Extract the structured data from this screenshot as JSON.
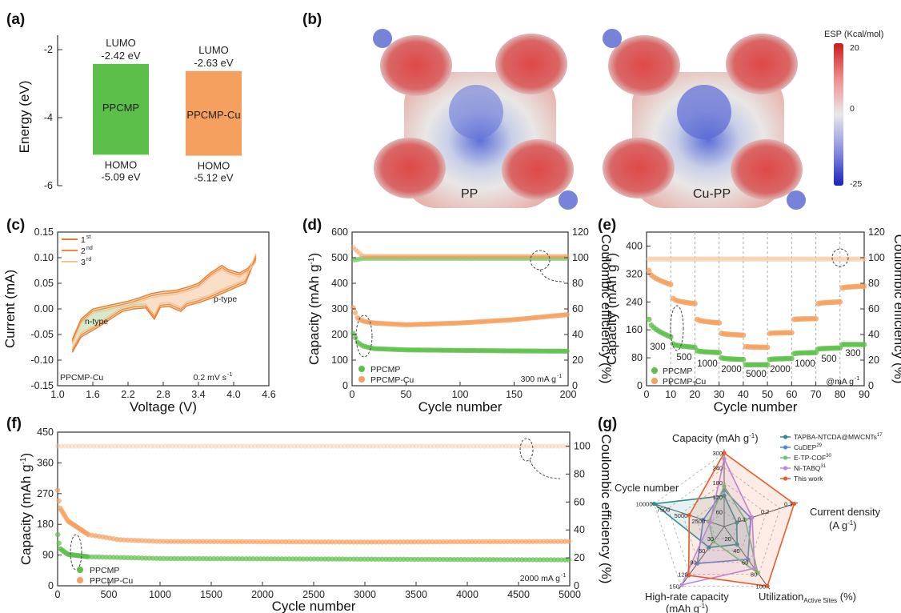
{
  "panels": {
    "a": "(a)",
    "b": "(b)",
    "c": "(c)",
    "d": "(d)",
    "e": "(e)",
    "f": "(f)",
    "g": "(g)"
  },
  "colors": {
    "green": "#5cbf4a",
    "orange": "#f5a05e",
    "orange_dark": "#ef7a2a",
    "teal": "#2e8b8f",
    "blue": "#5b86c9",
    "lgreen": "#6ec07a",
    "purple": "#b98be0",
    "red": "#ec5a2a"
  },
  "chart_data": [
    {
      "panel": "a",
      "type": "bar",
      "ylabel": "Energy (eV)",
      "yticks": [
        "-2",
        "-4",
        "-6"
      ],
      "ylim": [
        -6,
        -1.6
      ],
      "bars": [
        {
          "name": "PPCMP",
          "lumo": -2.42,
          "homo": -5.09,
          "lumo_label": "LUMO",
          "lumo_value": "-2.42 eV",
          "homo_label": "HOMO",
          "homo_value": "-5.09 eV",
          "color": "#5cbf4a"
        },
        {
          "name": "PPCMP-Cu",
          "lumo": -2.63,
          "homo": -5.12,
          "lumo_label": "LUMO",
          "lumo_value": "-2.63 eV",
          "homo_label": "HOMO",
          "homo_value": "-5.12 eV",
          "color": "#f5a05e"
        }
      ]
    },
    {
      "panel": "b",
      "type": "heatmap",
      "images": [
        "PP",
        "Cu-PP"
      ],
      "colorbar_title": "ESP (Kcal/mol)",
      "colorbar_ticks": [
        "20",
        "0",
        "-25"
      ],
      "colorbar_range": [
        -25,
        20
      ]
    },
    {
      "panel": "c",
      "type": "line",
      "xlabel": "Voltage (V)",
      "ylabel": "Current (mA)",
      "xlim": [
        1.0,
        4.6
      ],
      "ylim": [
        -0.15,
        0.15
      ],
      "xticks": [
        "1.0",
        "1.6",
        "2.2",
        "2.8",
        "3.4",
        "4.0",
        "4.6"
      ],
      "yticks": [
        "0.15",
        "0.10",
        "0.05",
        "0.00",
        "-0.05",
        "-0.10",
        "-0.15"
      ],
      "series": [
        {
          "name": "1",
          "sup": "st",
          "color": "#ef7a2a"
        },
        {
          "name": "2",
          "sup": "nd",
          "color": "#f08a40"
        },
        {
          "name": "3",
          "sup": "rd",
          "color": "#f7c393"
        }
      ],
      "upper": [
        [
          1.25,
          -0.06
        ],
        [
          1.4,
          -0.02
        ],
        [
          1.6,
          0.0
        ],
        [
          1.8,
          0.005
        ],
        [
          2.0,
          0.01
        ],
        [
          2.2,
          0.015
        ],
        [
          2.4,
          0.022
        ],
        [
          2.6,
          0.03
        ],
        [
          2.8,
          0.034
        ],
        [
          3.0,
          0.036
        ],
        [
          3.2,
          0.042
        ],
        [
          3.4,
          0.05
        ],
        [
          3.6,
          0.07
        ],
        [
          3.8,
          0.085
        ],
        [
          3.9,
          0.077
        ],
        [
          4.1,
          0.07
        ],
        [
          4.25,
          0.08
        ],
        [
          4.38,
          0.1
        ]
      ],
      "lower": [
        [
          1.25,
          -0.085
        ],
        [
          1.4,
          -0.055
        ],
        [
          1.55,
          -0.045
        ],
        [
          1.7,
          -0.035
        ],
        [
          1.9,
          -0.02
        ],
        [
          2.1,
          -0.005
        ],
        [
          2.3,
          0.0
        ],
        [
          2.5,
          0.002
        ],
        [
          2.65,
          -0.02
        ],
        [
          2.75,
          0.003
        ],
        [
          2.9,
          0.005
        ],
        [
          3.1,
          -0.005
        ],
        [
          3.2,
          0.006
        ],
        [
          3.4,
          0.012
        ],
        [
          3.6,
          0.02
        ],
        [
          3.8,
          0.03
        ],
        [
          4.0,
          0.04
        ],
        [
          4.2,
          0.05
        ],
        [
          4.38,
          0.1
        ]
      ],
      "annotations": [
        "n-type",
        "p-type"
      ],
      "corner_left": "PPCMP-Cu",
      "corner_right_text": "0.2 mV s",
      "corner_right_sup": "-1"
    },
    {
      "panel": "d",
      "type": "scatter",
      "xlabel": "Cycle number",
      "ylabel": "Capacity (mAh g",
      "ylabel_sup": "-1",
      "ylabel_right": "Coulombic efficiency (%)",
      "xlim": [
        0,
        200
      ],
      "ylim": [
        0,
        600
      ],
      "ylim_right": [
        0,
        120
      ],
      "xticks": [
        "0",
        "50",
        "100",
        "150",
        "200"
      ],
      "yticks": [
        "0",
        "100",
        "200",
        "300",
        "400",
        "500",
        "600"
      ],
      "yticks_right": [
        "0",
        "20",
        "40",
        "60",
        "80",
        "100",
        "120"
      ],
      "series": [
        {
          "name": "PPCMP",
          "capacity": [
            [
              1,
              205
            ],
            [
              5,
              170
            ],
            [
              10,
              155
            ],
            [
              20,
              145
            ],
            [
              50,
              140
            ],
            [
              100,
              138
            ],
            [
              150,
              136
            ],
            [
              200,
              135
            ]
          ],
          "ce": [
            [
              1,
              98
            ],
            [
              10,
              99.5
            ],
            [
              100,
              99.5
            ],
            [
              200,
              99.5
            ]
          ],
          "color": "#5cbf4a"
        },
        {
          "name": "PPCMP-Cu",
          "capacity": [
            [
              1,
              305
            ],
            [
              5,
              265
            ],
            [
              10,
              252
            ],
            [
              20,
              245
            ],
            [
              50,
              238
            ],
            [
              100,
              245
            ],
            [
              150,
              258
            ],
            [
              200,
              278
            ]
          ],
          "ce": [
            [
              1,
              108
            ],
            [
              10,
              101
            ],
            [
              100,
              101
            ],
            [
              200,
              101
            ]
          ],
          "color": "#f5a05e"
        }
      ],
      "corner_right_text": "300 mA g",
      "corner_right_sup": "-1"
    },
    {
      "panel": "e",
      "type": "scatter",
      "xlabel": "Cycle number",
      "ylabel": "Capacity (mAh g",
      "ylabel_sup": "-1",
      "ylabel_right": "Coulombic efficiency (%)",
      "xlim": [
        0,
        90
      ],
      "ylim": [
        0,
        440
      ],
      "ylim_right": [
        0,
        120
      ],
      "xticks": [
        "0",
        "10",
        "20",
        "30",
        "40",
        "50",
        "60",
        "70",
        "80",
        "90"
      ],
      "yticks": [
        "0",
        "80",
        "160",
        "240",
        "320",
        "400"
      ],
      "yticks_right": [
        "0",
        "20",
        "40",
        "60",
        "80",
        "100",
        "120"
      ],
      "rate_labels": [
        "300",
        "500",
        "1000",
        "2000",
        "5000",
        "2000",
        "1000",
        "500",
        "300"
      ],
      "segments": [
        {
          "x": [
            1,
            10
          ],
          "ppcmp": [
            190,
            140
          ],
          "ppcmp_cu": [
            330,
            290
          ]
        },
        {
          "x": [
            11,
            20
          ],
          "ppcmp": [
            120,
            110
          ],
          "ppcmp_cu": [
            250,
            235
          ]
        },
        {
          "x": [
            21,
            30
          ],
          "ppcmp": [
            100,
            95
          ],
          "ppcmp_cu": [
            190,
            180
          ]
        },
        {
          "x": [
            31,
            40
          ],
          "ppcmp": [
            80,
            75
          ],
          "ppcmp_cu": [
            150,
            145
          ]
        },
        {
          "x": [
            41,
            50
          ],
          "ppcmp": [
            60,
            60
          ],
          "ppcmp_cu": [
            112,
            110
          ]
        },
        {
          "x": [
            51,
            60
          ],
          "ppcmp": [
            75,
            78
          ],
          "ppcmp_cu": [
            150,
            152
          ]
        },
        {
          "x": [
            61,
            70
          ],
          "ppcmp": [
            92,
            95
          ],
          "ppcmp_cu": [
            190,
            192
          ]
        },
        {
          "x": [
            71,
            80
          ],
          "ppcmp": [
            105,
            108
          ],
          "ppcmp_cu": [
            235,
            240
          ]
        },
        {
          "x": [
            81,
            90
          ],
          "ppcmp": [
            118,
            118
          ],
          "ppcmp_cu": [
            280,
            285
          ]
        }
      ],
      "series": [
        {
          "name": "PPCMP",
          "color": "#5cbf4a"
        },
        {
          "name": "PPCMP-Cu",
          "color": "#f5a05e"
        }
      ],
      "corner_right_text": "@mA g",
      "corner_right_sup": "-1"
    },
    {
      "panel": "f",
      "type": "scatter",
      "xlabel": "Cycle number",
      "ylabel": "Capacity (mAh g",
      "ylabel_sup": "-1",
      "ylabel_right": "Coulombic efficiency (%)",
      "xlim": [
        0,
        5000
      ],
      "ylim": [
        0,
        450
      ],
      "ylim_right": [
        0,
        110
      ],
      "xticks": [
        "0",
        "500",
        "1000",
        "1500",
        "2000",
        "2500",
        "3000",
        "3500",
        "4000",
        "4500",
        "5000"
      ],
      "yticks": [
        "0",
        "90",
        "180",
        "270",
        "360",
        "450"
      ],
      "yticks_right": [
        "0",
        "20",
        "40",
        "60",
        "80",
        "100"
      ],
      "series": [
        {
          "name": "PPCMP",
          "capacity": [
            [
              1,
              150
            ],
            [
              20,
              110
            ],
            [
              100,
              92
            ],
            [
              300,
              85
            ],
            [
              1000,
              80
            ],
            [
              3000,
              78
            ],
            [
              5000,
              76
            ]
          ],
          "ce": [
            [
              1,
              100
            ],
            [
              5000,
              100
            ]
          ],
          "color": "#5cbf4a"
        },
        {
          "name": "PPCMP-Cu",
          "capacity": [
            [
              1,
              280
            ],
            [
              20,
              230
            ],
            [
              100,
              190
            ],
            [
              300,
              150
            ],
            [
              600,
              135
            ],
            [
              1000,
              130
            ],
            [
              3000,
              128
            ],
            [
              5000,
              130
            ]
          ],
          "ce": [
            [
              1,
              100
            ],
            [
              5000,
              100
            ]
          ],
          "color": "#f5a05e"
        }
      ],
      "corner_right_text": "2000 mA g",
      "corner_right_sup": "-1"
    },
    {
      "panel": "g",
      "type": "radar",
      "axes": [
        {
          "label": "Capacity (mAh g",
          "sup": "-1",
          "tail": ")",
          "ticks": [
            "60",
            "120",
            "180",
            "240",
            "300"
          ]
        },
        {
          "label": "Current density",
          "line2": "(A g",
          "sup": "-1",
          "tail": ")",
          "ticks": [
            "0.1",
            "0.2",
            "0.3"
          ]
        },
        {
          "label": "Utilization",
          "sub": "Active Sites",
          "tail": " (%)",
          "ticks": [
            "20",
            "40",
            "60",
            "80",
            "100"
          ]
        },
        {
          "label": "High-rate capacity",
          "line2": "(mAh g",
          "sup": "-1",
          "tail": ")",
          "ticks": [
            "30",
            "60",
            "90",
            "120",
            "150"
          ]
        },
        {
          "label": "Cycle number",
          "ticks": [
            "2500",
            "5000",
            "7500",
            "10000"
          ]
        }
      ],
      "series": [
        {
          "name": "TAPBA-NTCDA@MWCNTs",
          "sup": "17",
          "values": [
            0.42,
            0.18,
            0.3,
            0.35,
            1.0
          ],
          "color": "#2e8b8f"
        },
        {
          "name": "CuDEP",
          "sup": "29",
          "values": [
            0.5,
            0.38,
            0.55,
            0.62,
            0.3
          ],
          "color": "#5b86c9"
        },
        {
          "name": "E-TP-COF",
          "sup": "30",
          "values": [
            0.55,
            0.3,
            0.78,
            0.25,
            0.22
          ],
          "color": "#6ec07a"
        },
        {
          "name": "Ni-TABQ",
          "sup": "31",
          "values": [
            0.92,
            0.4,
            0.7,
            0.98,
            0.2
          ],
          "color": "#b98be0"
        },
        {
          "name": "This work",
          "values": [
            1.0,
            1.0,
            1.0,
            0.82,
            0.5
          ],
          "color": "#ec5a2a"
        }
      ]
    }
  ]
}
